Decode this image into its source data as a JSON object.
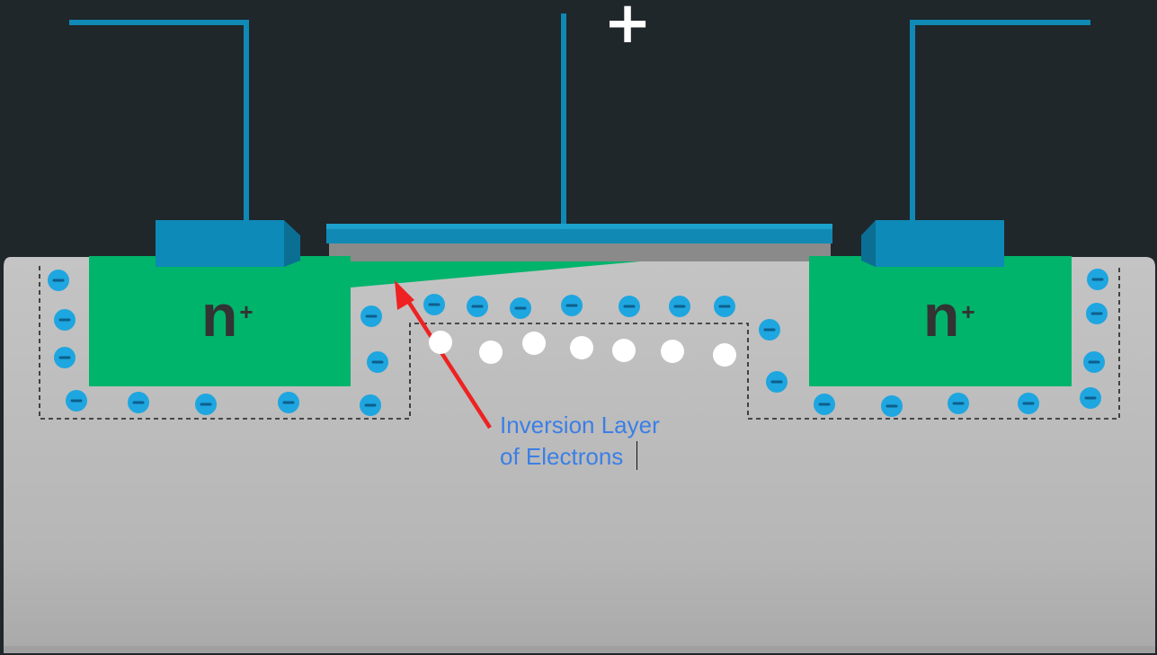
{
  "gate_polarity": "+",
  "source_label": {
    "base": "n",
    "superscript": "+"
  },
  "drain_label": {
    "base": "n",
    "superscript": "+"
  },
  "annotation": {
    "line1": "Inversion Layer",
    "line2": "of Electrons"
  },
  "colors": {
    "background": "#1f272b",
    "wire": "#1189b5",
    "contact": "#0e8ab8",
    "n_plus_region": "#00b46b",
    "substrate": "#bcbcbc",
    "oxide": "#8a8a8a",
    "ion": "#1ea6e0",
    "ion_mark": "#0e5f8c",
    "electron": "#ffffff",
    "arrow": "#ee2222",
    "annotation_text": "#3b7fe6"
  },
  "icons": {
    "negative_ion": "circle-with-minus",
    "electron": "white-dot",
    "arrow": "red-arrow"
  }
}
